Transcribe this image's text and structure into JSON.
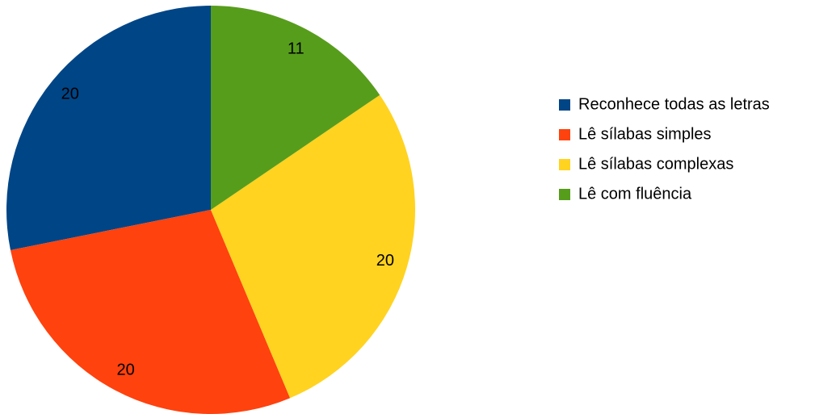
{
  "chart_data": {
    "type": "pie",
    "categories": [
      "Reconhece todas as letras",
      "Lê sílabas simples",
      "Lê sílabas complexas",
      "Lê com fluência"
    ],
    "values": [
      20,
      20,
      20,
      11
    ],
    "colors": [
      "#004586",
      "#ff420e",
      "#ffd320",
      "#579d1c"
    ],
    "legend": "right"
  }
}
